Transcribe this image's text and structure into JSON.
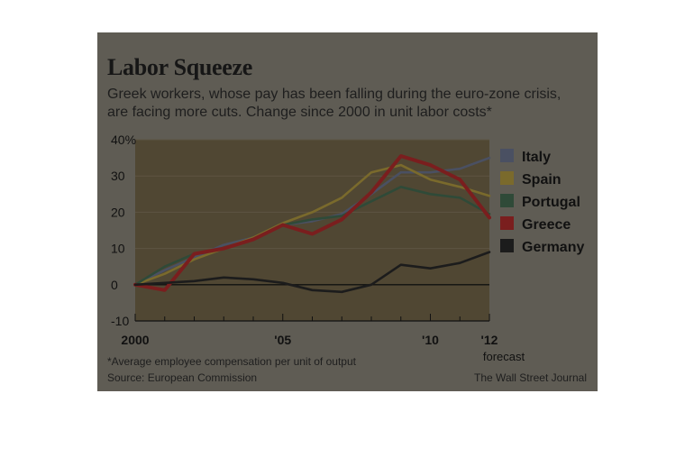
{
  "header": {
    "title": "Labor Squeeze",
    "subtitle": "Greek workers, whose pay has been falling during the euro-zone crisis, are facing more cuts. Change since 2000 in unit labor costs*"
  },
  "footer": {
    "footnote": "*Average employee compensation per unit of output",
    "source": "Source: European Commission",
    "credit": "The Wall Street Journal"
  },
  "chart_data": {
    "type": "line",
    "title": "Labor Squeeze",
    "x": [
      2000,
      2001,
      2002,
      2003,
      2004,
      2005,
      2006,
      2007,
      2008,
      2009,
      2010,
      2011,
      2012
    ],
    "x_tick_values": [
      2000,
      2005,
      2010,
      2012
    ],
    "x_tick_labels": [
      "2000",
      "'05",
      "'10",
      "'12"
    ],
    "x_annotation": "forecast",
    "xlim": [
      2000,
      2012
    ],
    "y_tick_values": [
      -10,
      0,
      10,
      20,
      30,
      40
    ],
    "y_tick_labels": [
      "-10",
      "0",
      "10",
      "20",
      "30",
      "40%"
    ],
    "ylim": [
      -10,
      40
    ],
    "legend_position": "right",
    "series": [
      {
        "name": "Italy",
        "color": "#4a5062",
        "values": [
          0,
          4,
          7.5,
          11,
          13,
          16.5,
          17.5,
          19.5,
          25,
          31,
          31,
          32,
          35
        ]
      },
      {
        "name": "Spain",
        "color": "#7a6a2c",
        "values": [
          0,
          3,
          7,
          10,
          13,
          17,
          20,
          24,
          31,
          33,
          29,
          27,
          24.5
        ]
      },
      {
        "name": "Portugal",
        "color": "#2f4a38",
        "values": [
          0,
          5,
          8.5,
          10,
          12.5,
          16.5,
          18,
          19,
          23,
          27,
          25,
          24,
          19.5
        ]
      },
      {
        "name": "Greece",
        "color": "#7a1e1e",
        "values": [
          0,
          -1.5,
          8.5,
          10,
          12.5,
          16.5,
          14,
          18,
          25.5,
          35.5,
          33,
          29,
          18.5
        ]
      },
      {
        "name": "Germany",
        "color": "#1c1c1c",
        "values": [
          0,
          0.5,
          1,
          2,
          1.5,
          0.5,
          -1.5,
          -2,
          0,
          5.5,
          4.5,
          6,
          9
        ]
      }
    ]
  }
}
